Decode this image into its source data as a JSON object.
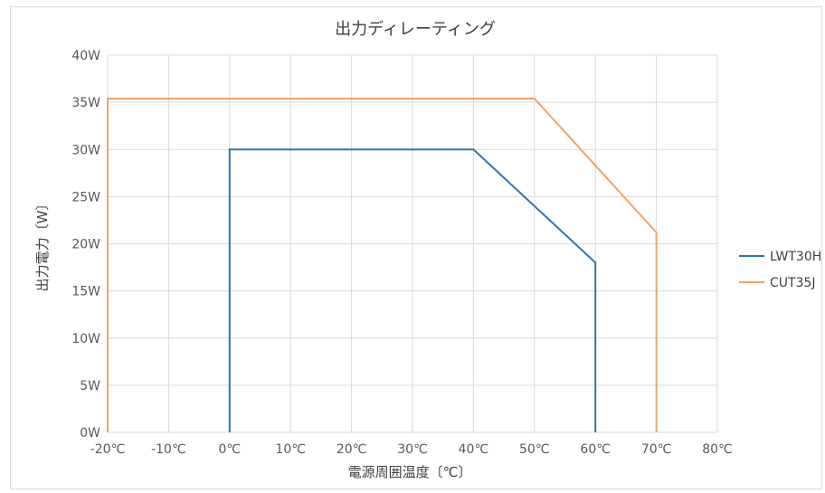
{
  "chart_data": {
    "type": "line",
    "title": "出力ディレーティング",
    "xlabel": "電源周囲温度〔℃〕",
    "ylabel": "出力電力〔W〕",
    "xlim": [
      -20,
      80
    ],
    "ylim": [
      0,
      40
    ],
    "x_ticks": [
      -20,
      -10,
      0,
      10,
      20,
      30,
      40,
      50,
      60,
      70,
      80
    ],
    "x_tick_labels": [
      "-20℃",
      "-10℃",
      "0℃",
      "10℃",
      "20℃",
      "30℃",
      "40℃",
      "50℃",
      "60℃",
      "70℃",
      "80℃"
    ],
    "y_ticks": [
      0,
      5,
      10,
      15,
      20,
      25,
      30,
      35,
      40
    ],
    "y_tick_labels": [
      "0W",
      "5W",
      "10W",
      "15W",
      "20W",
      "25W",
      "30W",
      "35W",
      "40W"
    ],
    "grid": true,
    "legend_position": "right",
    "series": [
      {
        "name": "LWT30H",
        "color": "#2e75b6",
        "points": [
          [
            0,
            0
          ],
          [
            0,
            30
          ],
          [
            40,
            30
          ],
          [
            60,
            18
          ],
          [
            60,
            0
          ]
        ]
      },
      {
        "name": "CUT35J",
        "color": "#f4a460",
        "points": [
          [
            -20,
            0
          ],
          [
            -20,
            35.4
          ],
          [
            50,
            35.4
          ],
          [
            70,
            21.2
          ],
          [
            70,
            0
          ]
        ]
      }
    ]
  }
}
